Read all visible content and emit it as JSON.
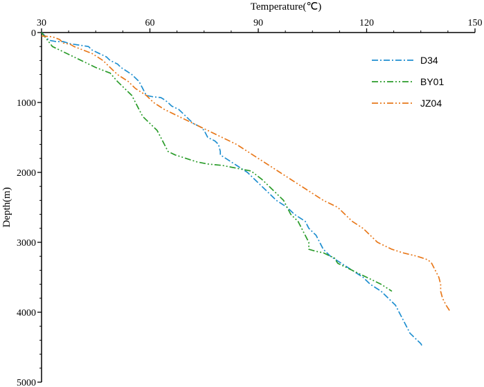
{
  "chart_data": {
    "type": "line",
    "xlabel": "Temperature(℃)",
    "ylabel": "Depth(m)",
    "xlim": [
      30,
      150
    ],
    "ylim": [
      0,
      5000
    ],
    "x_axis_position": "top",
    "y_axis_inverted": true,
    "grid": false,
    "legend_position": "top-right",
    "x_ticks": [
      "30",
      "60",
      "90",
      "120",
      "150"
    ],
    "y_ticks": [
      "0",
      "1000",
      "2000",
      "3000",
      "4000",
      "5000"
    ],
    "series": [
      {
        "name": "D34",
        "color": "#1f8fd0",
        "dash": "dash-dot",
        "points": [
          [
            30,
            0
          ],
          [
            31,
            50
          ],
          [
            32,
            110
          ],
          [
            33,
            120
          ],
          [
            34,
            130
          ],
          [
            36,
            130
          ],
          [
            38,
            160
          ],
          [
            43,
            200
          ],
          [
            44,
            250
          ],
          [
            46,
            300
          ],
          [
            48,
            350
          ],
          [
            49,
            400
          ],
          [
            51,
            450
          ],
          [
            52,
            500
          ],
          [
            55,
            600
          ],
          [
            56,
            650
          ],
          [
            57,
            700
          ],
          [
            58,
            800
          ],
          [
            59,
            900
          ],
          [
            61,
            920
          ],
          [
            63,
            930
          ],
          [
            64,
            960
          ],
          [
            65,
            1000
          ],
          [
            66,
            1050
          ],
          [
            68,
            1100
          ],
          [
            69,
            1150
          ],
          [
            70,
            1200
          ],
          [
            71,
            1250
          ],
          [
            72,
            1300
          ],
          [
            74,
            1350
          ],
          [
            75,
            1400
          ],
          [
            76,
            1500
          ],
          [
            78,
            1550
          ],
          [
            79,
            1600
          ],
          [
            79.5,
            1700
          ],
          [
            79.5,
            1750
          ],
          [
            81,
            1800
          ],
          [
            84,
            1900
          ],
          [
            87,
            2000
          ],
          [
            89,
            2100
          ],
          [
            91,
            2200
          ],
          [
            93,
            2300
          ],
          [
            95,
            2400
          ],
          [
            98,
            2500
          ],
          [
            100,
            2600
          ],
          [
            103,
            2700
          ],
          [
            104,
            2800
          ],
          [
            106,
            2900
          ],
          [
            107,
            3000
          ],
          [
            108,
            3100
          ],
          [
            110,
            3200
          ],
          [
            113,
            3300
          ],
          [
            116,
            3400
          ],
          [
            119,
            3500
          ],
          [
            121,
            3600
          ],
          [
            124,
            3700
          ],
          [
            126,
            3800
          ],
          [
            128,
            3900
          ],
          [
            129,
            4000
          ],
          [
            130,
            4100
          ],
          [
            131,
            4200
          ],
          [
            132,
            4300
          ],
          [
            134,
            4400
          ],
          [
            135,
            4450
          ],
          [
            135.5,
            4500
          ]
        ]
      },
      {
        "name": "BY01",
        "color": "#2a9c2a",
        "dash": "dash-dot-dot",
        "points": [
          [
            30,
            0
          ],
          [
            33,
            200
          ],
          [
            45,
            500
          ],
          [
            49,
            580
          ],
          [
            51,
            700
          ],
          [
            53,
            800
          ],
          [
            55,
            900
          ],
          [
            56,
            1000
          ],
          [
            57,
            1100
          ],
          [
            58,
            1200
          ],
          [
            60,
            1300
          ],
          [
            62,
            1400
          ],
          [
            63,
            1500
          ],
          [
            64,
            1600
          ],
          [
            65,
            1700
          ],
          [
            67,
            1750
          ],
          [
            70,
            1800
          ],
          [
            73,
            1850
          ],
          [
            76,
            1880
          ],
          [
            80,
            1900
          ],
          [
            85,
            1950
          ],
          [
            88,
            1980
          ],
          [
            91,
            2100
          ],
          [
            93,
            2200
          ],
          [
            95,
            2300
          ],
          [
            97,
            2400
          ],
          [
            98,
            2500
          ],
          [
            99,
            2600
          ],
          [
            101,
            2700
          ],
          [
            102,
            2800
          ],
          [
            103,
            2900
          ],
          [
            104,
            3000
          ],
          [
            104,
            3100
          ],
          [
            106,
            3130
          ],
          [
            108,
            3150
          ],
          [
            110,
            3200
          ],
          [
            111,
            3220
          ],
          [
            112,
            3300
          ],
          [
            116,
            3400
          ],
          [
            120,
            3500
          ],
          [
            124,
            3600
          ],
          [
            127,
            3700
          ]
        ]
      },
      {
        "name": "JZ04",
        "color": "#e8781a",
        "dash": "dash-dot-dot",
        "points": [
          [
            30,
            50
          ],
          [
            33,
            60
          ],
          [
            35,
            100
          ],
          [
            36,
            150
          ],
          [
            38,
            170
          ],
          [
            39,
            200
          ],
          [
            44,
            300
          ],
          [
            47,
            400
          ],
          [
            49,
            500
          ],
          [
            51,
            600
          ],
          [
            54,
            700
          ],
          [
            56,
            800
          ],
          [
            59,
            900
          ],
          [
            61,
            1000
          ],
          [
            64,
            1100
          ],
          [
            68,
            1200
          ],
          [
            72,
            1300
          ],
          [
            76,
            1400
          ],
          [
            80,
            1500
          ],
          [
            84,
            1600
          ],
          [
            87,
            1700
          ],
          [
            90,
            1800
          ],
          [
            93,
            1900
          ],
          [
            96,
            2000
          ],
          [
            99,
            2100
          ],
          [
            102,
            2200
          ],
          [
            105,
            2300
          ],
          [
            108,
            2400
          ],
          [
            112,
            2500
          ],
          [
            114,
            2600
          ],
          [
            116,
            2700
          ],
          [
            119,
            2800
          ],
          [
            121,
            2900
          ],
          [
            123,
            3000
          ],
          [
            125,
            3050
          ],
          [
            127,
            3100
          ],
          [
            130,
            3150
          ],
          [
            134,
            3200
          ],
          [
            137,
            3250
          ],
          [
            138,
            3300
          ],
          [
            139,
            3400
          ],
          [
            140,
            3500
          ],
          [
            140.5,
            3600
          ],
          [
            140.5,
            3700
          ],
          [
            141,
            3800
          ],
          [
            142,
            3900
          ],
          [
            143,
            3980
          ]
        ]
      }
    ]
  }
}
